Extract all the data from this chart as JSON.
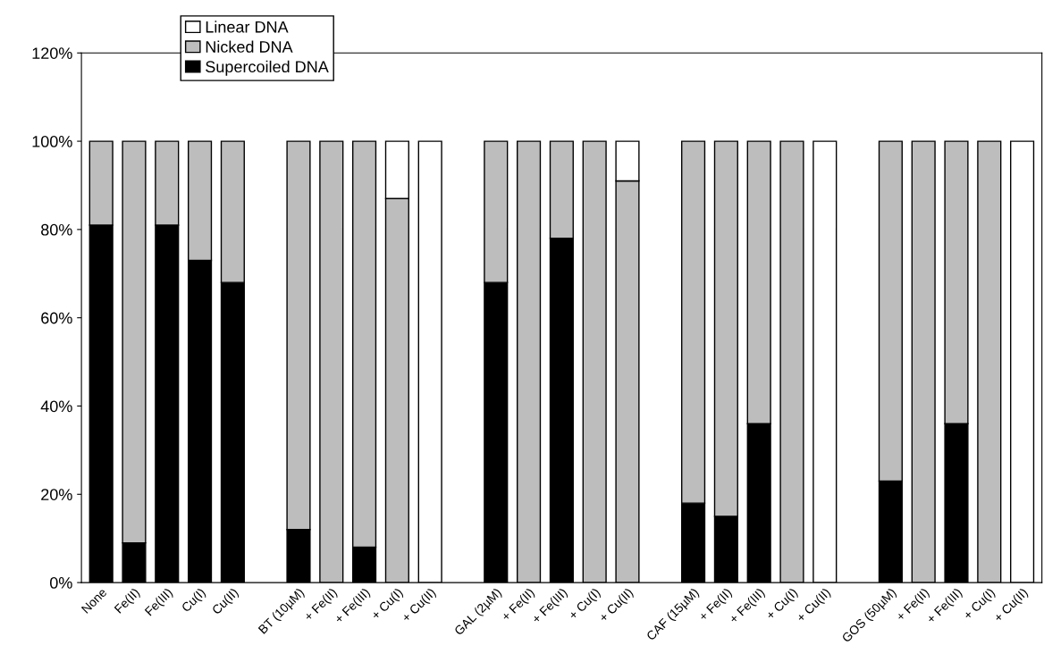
{
  "chart_data": {
    "type": "bar",
    "stacked": true,
    "categories": [
      "None",
      "Fe(II)",
      "Fe(III)",
      "Cu(I)",
      "Cu(II)",
      null,
      "BT (10µM)",
      "+ Fe(II)",
      "+ Fe(III)",
      "+ Cu(I)",
      "+ Cu(II)",
      null,
      "GAL (2µM)",
      "+ Fe(II)",
      "+ Fe(III)",
      "+ Cu(I)",
      "+ Cu(II)",
      null,
      "CAF (15µM)",
      "+ Fe(II)",
      "+ Fe(III)",
      "+ Cu(I)",
      "+ Cu(II)",
      null,
      "GOS (50µM)",
      "+ Fe(II)",
      "+ Fe(III)",
      "+ Cu(I)",
      "+ Cu(II)"
    ],
    "series": [
      {
        "name": "Supercoiled DNA",
        "color": "#000000",
        "values": [
          81,
          9,
          81,
          73,
          68,
          null,
          12,
          0,
          8,
          0,
          0,
          null,
          68,
          0,
          78,
          0,
          0,
          null,
          18,
          15,
          36,
          0,
          0,
          null,
          23,
          0,
          36,
          0,
          0
        ]
      },
      {
        "name": "Nicked DNA",
        "color": "#bdbdbd",
        "values": [
          19,
          91,
          19,
          27,
          32,
          null,
          88,
          100,
          92,
          87,
          0,
          null,
          32,
          100,
          22,
          100,
          91,
          null,
          82,
          85,
          64,
          100,
          0,
          null,
          77,
          100,
          64,
          100,
          0
        ]
      },
      {
        "name": "Linear DNA",
        "color": "#ffffff",
        "values": [
          0,
          0,
          0,
          0,
          0,
          null,
          0,
          0,
          0,
          13,
          100,
          null,
          0,
          0,
          0,
          0,
          9,
          null,
          0,
          0,
          0,
          0,
          100,
          null,
          0,
          0,
          0,
          0,
          100
        ]
      }
    ],
    "ylim": [
      0,
      120
    ],
    "yticks": [
      {
        "value": 0,
        "label": "0%"
      },
      {
        "value": 20,
        "label": "20%"
      },
      {
        "value": 40,
        "label": "40%"
      },
      {
        "value": 60,
        "label": "60%"
      },
      {
        "value": 80,
        "label": "80%"
      },
      {
        "value": 100,
        "label": "100%"
      },
      {
        "value": 120,
        "label": "120%"
      }
    ],
    "grid": false,
    "legend": "top left"
  }
}
